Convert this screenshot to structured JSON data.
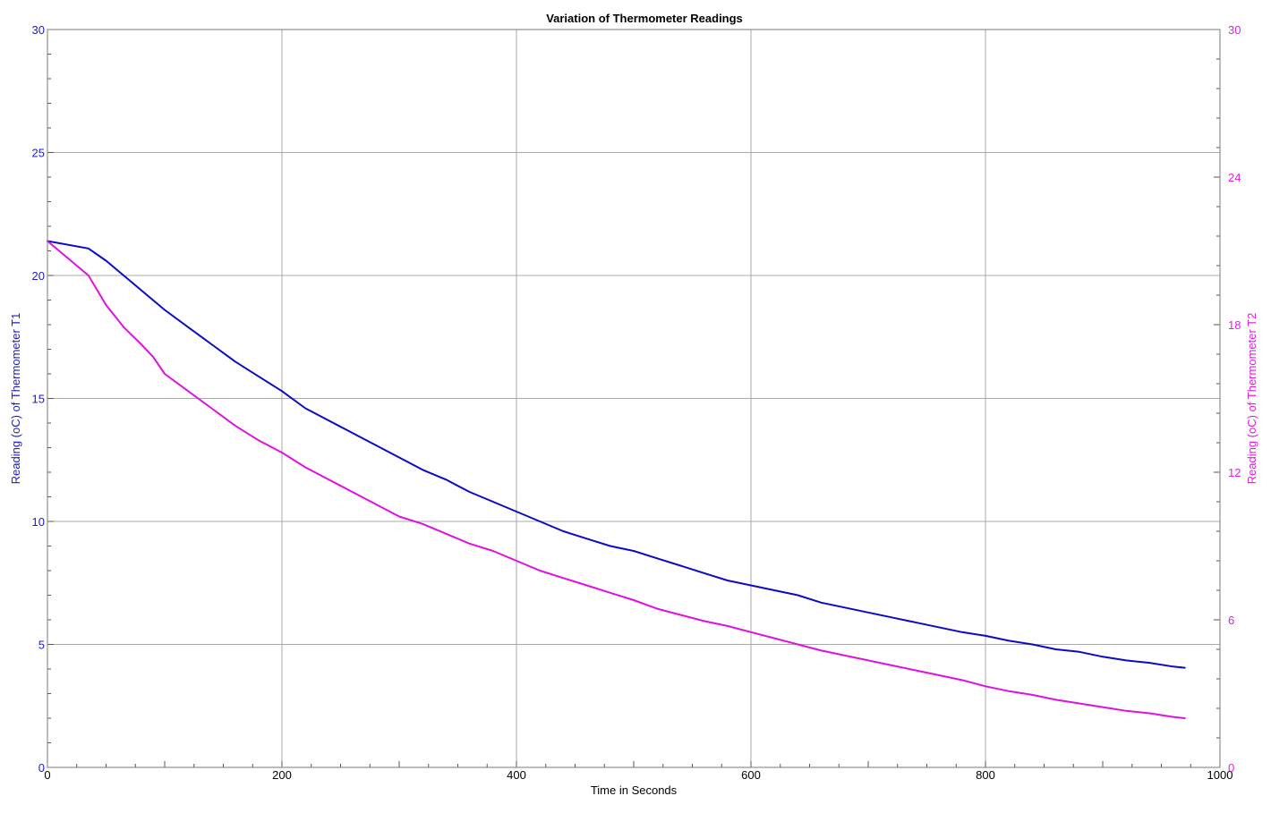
{
  "chart_data": {
    "type": "line",
    "title": "Variation of Thermometer Readings",
    "xlabel": "Time in Seconds",
    "xlim": [
      0,
      1000
    ],
    "xticks": [
      0,
      200,
      400,
      600,
      800,
      1000
    ],
    "grid": true,
    "y_left": {
      "label": "Reading (oC) of Thermometer T1",
      "lim": [
        0,
        30
      ],
      "ticks": [
        0,
        5,
        10,
        15,
        20,
        25,
        30
      ],
      "color": "#1a1acc"
    },
    "y_right": {
      "label": "Reading (oC) of Thermometer T2",
      "lim": [
        0,
        30
      ],
      "ticks": [
        0,
        6,
        12,
        18,
        24,
        30
      ],
      "color": "#e020e0"
    },
    "series": [
      {
        "axis": "left",
        "color": "#0a0ac8",
        "x": [
          0,
          35,
          50,
          60,
          80,
          100,
          120,
          140,
          160,
          180,
          200,
          220,
          240,
          260,
          280,
          300,
          320,
          340,
          360,
          380,
          400,
          420,
          440,
          460,
          480,
          500,
          520,
          540,
          560,
          580,
          600,
          620,
          640,
          660,
          680,
          700,
          720,
          740,
          760,
          780,
          800,
          820,
          840,
          860,
          880,
          900,
          920,
          940,
          960,
          970
        ],
        "y": [
          21.4,
          21.1,
          20.6,
          20.2,
          19.4,
          18.6,
          17.9,
          17.2,
          16.5,
          15.9,
          15.3,
          14.6,
          14.1,
          13.6,
          13.1,
          12.6,
          12.1,
          11.7,
          11.2,
          10.8,
          10.4,
          10.0,
          9.6,
          9.3,
          9.0,
          8.8,
          8.5,
          8.2,
          7.9,
          7.6,
          7.4,
          7.2,
          7.0,
          6.7,
          6.5,
          6.3,
          6.1,
          5.9,
          5.7,
          5.5,
          5.35,
          5.15,
          5.0,
          4.8,
          4.7,
          4.5,
          4.35,
          4.25,
          4.1,
          4.05
        ]
      },
      {
        "axis": "right",
        "color": "#e010e0",
        "x": [
          0,
          20,
          35,
          40,
          50,
          65,
          80,
          90,
          100,
          120,
          140,
          160,
          180,
          200,
          220,
          240,
          260,
          280,
          300,
          320,
          340,
          360,
          380,
          400,
          420,
          440,
          460,
          480,
          500,
          520,
          540,
          560,
          580,
          600,
          620,
          640,
          660,
          680,
          700,
          720,
          740,
          760,
          780,
          800,
          820,
          840,
          860,
          880,
          900,
          920,
          940,
          960,
          970
        ],
        "y": [
          21.4,
          20.6,
          20.0,
          19.6,
          18.8,
          17.9,
          17.2,
          16.7,
          16.0,
          15.3,
          14.6,
          13.9,
          13.3,
          12.8,
          12.2,
          11.7,
          11.2,
          10.7,
          10.2,
          9.9,
          9.5,
          9.1,
          8.8,
          8.4,
          8.0,
          7.7,
          7.4,
          7.1,
          6.8,
          6.45,
          6.2,
          5.95,
          5.75,
          5.5,
          5.25,
          5.0,
          4.75,
          4.55,
          4.35,
          4.15,
          3.95,
          3.75,
          3.55,
          3.3,
          3.1,
          2.95,
          2.75,
          2.6,
          2.45,
          2.3,
          2.2,
          2.05,
          2.0
        ]
      }
    ]
  }
}
